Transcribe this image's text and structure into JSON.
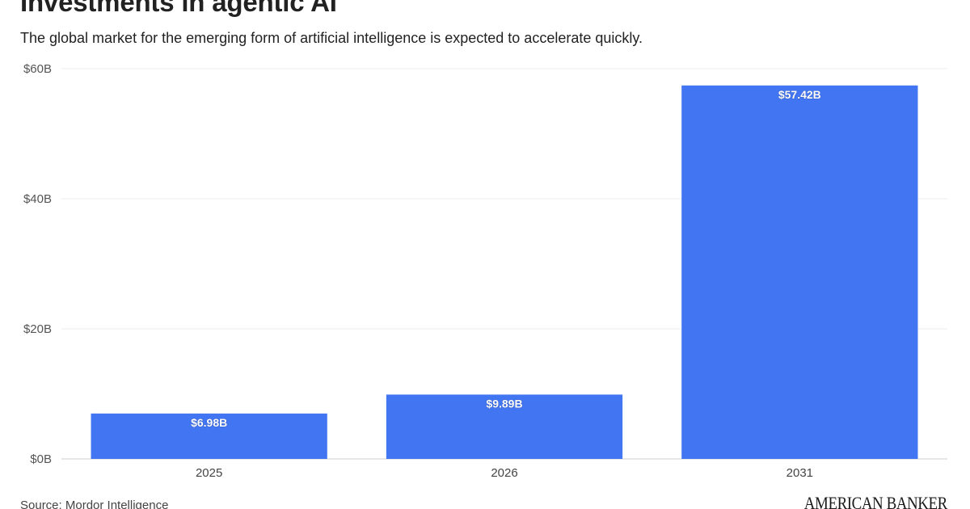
{
  "header": {
    "title": "Investments in agentic AI",
    "subtitle": "The global market for the emerging form of artificial intelligence is expected to accelerate quickly."
  },
  "footer": {
    "source": "Source: Mordor Intelligence",
    "brand": "AMERICAN BANKER"
  },
  "chart_data": {
    "type": "bar",
    "title": "Investments in agentic AI",
    "subtitle": "The global market for the emerging form of artificial intelligence is expected to accelerate quickly.",
    "categories": [
      "2025",
      "2026",
      "2031"
    ],
    "values": [
      6.98,
      9.89,
      57.42
    ],
    "value_labels": [
      "$6.98B",
      "$9.89B",
      "$57.42B"
    ],
    "ylim": [
      0,
      60
    ],
    "yticks": [
      0,
      20,
      40,
      60
    ],
    "ytick_labels": [
      "$0B",
      "$20B",
      "$40B",
      "$60B"
    ],
    "xlabel": "",
    "ylabel": "",
    "grid": true,
    "legend": "none",
    "bar_color": "#4275f2"
  }
}
